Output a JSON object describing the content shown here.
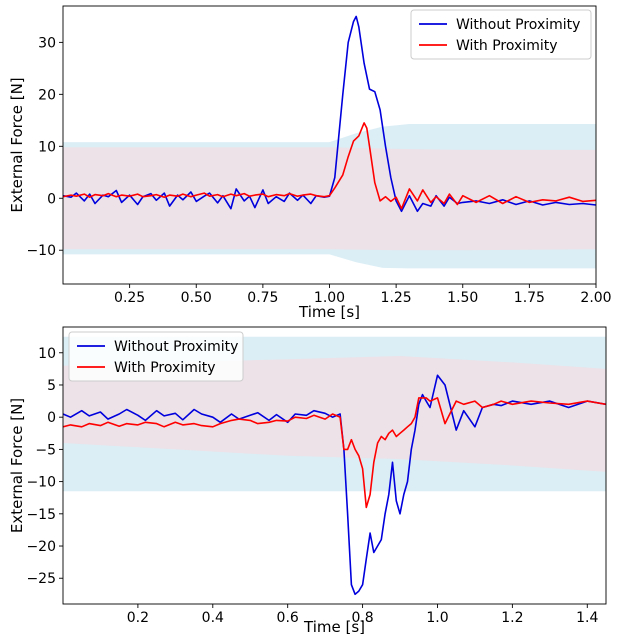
{
  "chart_data": [
    {
      "type": "line",
      "xlabel": "Time [s]",
      "ylabel": "External Force [N]",
      "xlim": [
        0.0,
        2.0
      ],
      "ylim": [
        -16.5,
        37
      ],
      "xticks": [
        0.25,
        0.5,
        0.75,
        1.0,
        1.25,
        1.5,
        1.75,
        2.0
      ],
      "xtick_labels": [
        "0.25",
        "0.50",
        "0.75",
        "1.00",
        "1.25",
        "1.50",
        "1.75",
        "2.00"
      ],
      "yticks": [
        -10,
        0,
        10,
        20,
        30
      ],
      "ytick_labels": [
        "−10",
        "0",
        "10",
        "20",
        "30"
      ],
      "legend_position": "top-right",
      "bands": [
        {
          "color": "#dbeef5",
          "x": [
            0,
            1.0,
            1.1,
            1.2,
            1.3,
            2.0
          ],
          "upper": [
            10.8,
            10.8,
            12.5,
            13.8,
            14.3,
            14.3
          ],
          "lower": [
            -10.8,
            -10.8,
            -12.3,
            -13.4,
            -13.5,
            -13.5
          ]
        },
        {
          "color": "#ece2e8",
          "x": [
            0,
            1.0,
            1.25,
            1.5,
            2.0
          ],
          "upper": [
            9.8,
            9.8,
            9.5,
            9.3,
            9.3
          ],
          "lower": [
            -9.8,
            -9.8,
            -10.0,
            -10.0,
            -9.8
          ]
        }
      ],
      "series": [
        {
          "name": "Without Proximity",
          "color": "#0000dd",
          "x": [
            0,
            0.03,
            0.05,
            0.08,
            0.1,
            0.12,
            0.15,
            0.17,
            0.2,
            0.22,
            0.25,
            0.28,
            0.3,
            0.33,
            0.35,
            0.38,
            0.4,
            0.43,
            0.45,
            0.48,
            0.5,
            0.53,
            0.55,
            0.58,
            0.6,
            0.63,
            0.65,
            0.68,
            0.7,
            0.72,
            0.75,
            0.77,
            0.8,
            0.83,
            0.85,
            0.88,
            0.9,
            0.93,
            0.95,
            0.98,
            1.0,
            1.02,
            1.05,
            1.07,
            1.09,
            1.1,
            1.11,
            1.13,
            1.15,
            1.17,
            1.19,
            1.21,
            1.23,
            1.25,
            1.27,
            1.3,
            1.33,
            1.35,
            1.38,
            1.4,
            1.43,
            1.45,
            1.48,
            1.5,
            1.55,
            1.6,
            1.65,
            1.7,
            1.75,
            1.8,
            1.85,
            1.9,
            1.95,
            2.0
          ],
          "y": [
            0.5,
            0.2,
            1.0,
            -0.5,
            0.8,
            -1.0,
            0.6,
            0.3,
            1.5,
            -0.8,
            0.6,
            -1.2,
            0.3,
            0.9,
            -0.4,
            1.0,
            -1.5,
            0.6,
            -0.3,
            1.2,
            -0.6,
            0.4,
            1.0,
            -0.9,
            0.5,
            -2.0,
            1.8,
            -0.5,
            0.4,
            -1.8,
            1.6,
            -1.0,
            0.3,
            -0.6,
            1.0,
            -0.4,
            0.6,
            -1.0,
            0.5,
            0.2,
            0.4,
            4.0,
            20.0,
            30.0,
            34.0,
            35.0,
            33.0,
            26.0,
            21.0,
            20.5,
            17.0,
            10.0,
            4.0,
            -0.5,
            -2.5,
            0.5,
            -2.5,
            -1.0,
            -1.5,
            0.5,
            -1.5,
            0.2,
            -1.0,
            -0.8,
            -0.5,
            -1.0,
            -0.3,
            -1.2,
            -0.5,
            -1.3,
            -0.8,
            -1.2,
            -1.0,
            -1.3
          ]
        },
        {
          "name": "With Proximity",
          "color": "#ff0000",
          "x": [
            0,
            0.03,
            0.05,
            0.08,
            0.1,
            0.12,
            0.15,
            0.17,
            0.2,
            0.22,
            0.25,
            0.28,
            0.3,
            0.33,
            0.35,
            0.38,
            0.4,
            0.43,
            0.45,
            0.48,
            0.5,
            0.53,
            0.55,
            0.58,
            0.6,
            0.63,
            0.65,
            0.68,
            0.7,
            0.72,
            0.75,
            0.77,
            0.8,
            0.83,
            0.85,
            0.88,
            0.9,
            0.93,
            0.95,
            0.98,
            1.0,
            1.02,
            1.05,
            1.07,
            1.09,
            1.11,
            1.13,
            1.14,
            1.15,
            1.17,
            1.19,
            1.21,
            1.23,
            1.25,
            1.27,
            1.3,
            1.33,
            1.35,
            1.38,
            1.4,
            1.43,
            1.45,
            1.48,
            1.5,
            1.55,
            1.6,
            1.65,
            1.7,
            1.75,
            1.8,
            1.85,
            1.9,
            1.95,
            2.0
          ],
          "y": [
            0.3,
            0.6,
            0.4,
            0.8,
            0.2,
            0.7,
            0.5,
            0.9,
            0.3,
            0.6,
            0.4,
            0.8,
            0.3,
            0.5,
            0.7,
            0.2,
            0.6,
            0.4,
            0.8,
            0.3,
            0.6,
            1.0,
            0.4,
            0.7,
            0.3,
            0.8,
            0.5,
            0.9,
            0.4,
            0.6,
            0.8,
            0.3,
            0.7,
            0.5,
            0.9,
            0.4,
            0.6,
            0.8,
            0.5,
            0.3,
            0.5,
            2.0,
            4.5,
            8.0,
            11.0,
            12.0,
            14.5,
            13.5,
            10.0,
            3.0,
            -0.5,
            0.3,
            -0.6,
            0.2,
            -2.0,
            1.8,
            -0.5,
            1.6,
            -0.8,
            0.3,
            -1.0,
            0.8,
            -1.2,
            0.5,
            -0.8,
            0.5,
            -1.0,
            0.3,
            -0.8,
            -0.3,
            -0.5,
            0.2,
            -0.6,
            -0.4
          ]
        }
      ]
    },
    {
      "type": "line",
      "xlabel": "Time [s]",
      "ylabel": "External Force [N]",
      "xlim": [
        0.0,
        1.45
      ],
      "ylim": [
        -29,
        14
      ],
      "xticks": [
        0.2,
        0.4,
        0.6,
        0.8,
        1.0,
        1.2,
        1.4
      ],
      "xtick_labels": [
        "0.2",
        "0.4",
        "0.6",
        "0.8",
        "1.0",
        "1.2",
        "1.4"
      ],
      "yticks": [
        -25,
        -20,
        -15,
        -10,
        -5,
        0,
        5,
        10
      ],
      "ytick_labels": [
        "−25",
        "−20",
        "−15",
        "−10",
        "−5",
        "0",
        "5",
        "10"
      ],
      "legend_position": "top-left",
      "bands": [
        {
          "color": "#dbeef5",
          "x": [
            0,
            1.45
          ],
          "upper": [
            12.5,
            12.5
          ],
          "lower": [
            -11.5,
            -11.5
          ]
        },
        {
          "color": "#ece2e8",
          "x": [
            0,
            0.3,
            0.6,
            0.9,
            1.2,
            1.45
          ],
          "upper": [
            8.0,
            8.5,
            9.0,
            9.5,
            8.5,
            7.5
          ],
          "lower": [
            -4.0,
            -5.0,
            -6.0,
            -6.5,
            -7.5,
            -8.5
          ]
        }
      ],
      "series": [
        {
          "name": "Without Proximity",
          "color": "#0000dd",
          "x": [
            0,
            0.02,
            0.05,
            0.07,
            0.1,
            0.12,
            0.15,
            0.17,
            0.2,
            0.22,
            0.25,
            0.27,
            0.3,
            0.32,
            0.35,
            0.37,
            0.4,
            0.42,
            0.45,
            0.47,
            0.5,
            0.52,
            0.55,
            0.57,
            0.6,
            0.62,
            0.65,
            0.67,
            0.7,
            0.72,
            0.74,
            0.75,
            0.76,
            0.77,
            0.78,
            0.79,
            0.8,
            0.81,
            0.82,
            0.83,
            0.84,
            0.85,
            0.86,
            0.87,
            0.88,
            0.89,
            0.9,
            0.91,
            0.92,
            0.93,
            0.94,
            0.95,
            0.96,
            0.97,
            0.98,
            1.0,
            1.02,
            1.05,
            1.07,
            1.1,
            1.12,
            1.15,
            1.17,
            1.2,
            1.25,
            1.3,
            1.35,
            1.4,
            1.45
          ],
          "y": [
            0.5,
            0.0,
            1.0,
            0.2,
            0.8,
            -0.3,
            0.5,
            1.2,
            0.3,
            -0.5,
            1.0,
            0.2,
            0.6,
            -0.4,
            1.2,
            0.5,
            0.0,
            -0.8,
            0.5,
            -0.3,
            0.3,
            0.7,
            -0.5,
            0.4,
            -0.8,
            0.5,
            0.3,
            1.0,
            0.6,
            0.0,
            0.5,
            -5.0,
            -15.0,
            -26.0,
            -27.5,
            -27.0,
            -26.0,
            -22.0,
            -18.0,
            -21.0,
            -20.0,
            -19.0,
            -15.0,
            -12.0,
            -7.0,
            -13.0,
            -15.0,
            -12.0,
            -10.0,
            -5.0,
            -2.0,
            2.0,
            3.5,
            2.5,
            1.5,
            6.5,
            5.0,
            -2.0,
            1.0,
            -1.5,
            1.5,
            2.0,
            1.8,
            2.5,
            2.0,
            2.5,
            1.5,
            2.5,
            2.0
          ]
        },
        {
          "name": "With Proximity",
          "color": "#ff0000",
          "x": [
            0,
            0.02,
            0.05,
            0.07,
            0.1,
            0.12,
            0.15,
            0.17,
            0.2,
            0.22,
            0.25,
            0.27,
            0.3,
            0.32,
            0.35,
            0.37,
            0.4,
            0.42,
            0.45,
            0.47,
            0.5,
            0.52,
            0.55,
            0.57,
            0.6,
            0.62,
            0.65,
            0.67,
            0.7,
            0.72,
            0.74,
            0.75,
            0.76,
            0.77,
            0.78,
            0.79,
            0.8,
            0.81,
            0.82,
            0.83,
            0.84,
            0.85,
            0.86,
            0.87,
            0.88,
            0.89,
            0.9,
            0.91,
            0.92,
            0.93,
            0.94,
            0.95,
            0.96,
            0.97,
            0.98,
            1.0,
            1.02,
            1.05,
            1.07,
            1.1,
            1.12,
            1.15,
            1.17,
            1.2,
            1.25,
            1.3,
            1.35,
            1.4,
            1.45
          ],
          "y": [
            -1.5,
            -1.2,
            -1.5,
            -1.0,
            -1.3,
            -0.8,
            -1.4,
            -1.0,
            -1.2,
            -0.8,
            -1.0,
            -1.5,
            -0.8,
            -1.2,
            -1.0,
            -1.3,
            -1.5,
            -1.0,
            -0.5,
            -0.3,
            -0.5,
            -1.0,
            -0.8,
            -0.5,
            -0.6,
            0.0,
            -0.2,
            0.3,
            -0.3,
            0.5,
            0.0,
            -5.0,
            -5.0,
            -3.5,
            -5.0,
            -6.0,
            -8.0,
            -14.0,
            -12.0,
            -7.0,
            -4.0,
            -3.0,
            -3.5,
            -2.5,
            -2.0,
            -3.0,
            -2.5,
            -2.0,
            -1.5,
            -1.0,
            0.0,
            3.0,
            3.0,
            3.0,
            2.5,
            3.0,
            -1.0,
            2.5,
            2.0,
            2.5,
            1.5,
            2.0,
            2.5,
            2.0,
            2.5,
            2.2,
            2.0,
            2.5,
            2.0
          ]
        }
      ]
    }
  ]
}
